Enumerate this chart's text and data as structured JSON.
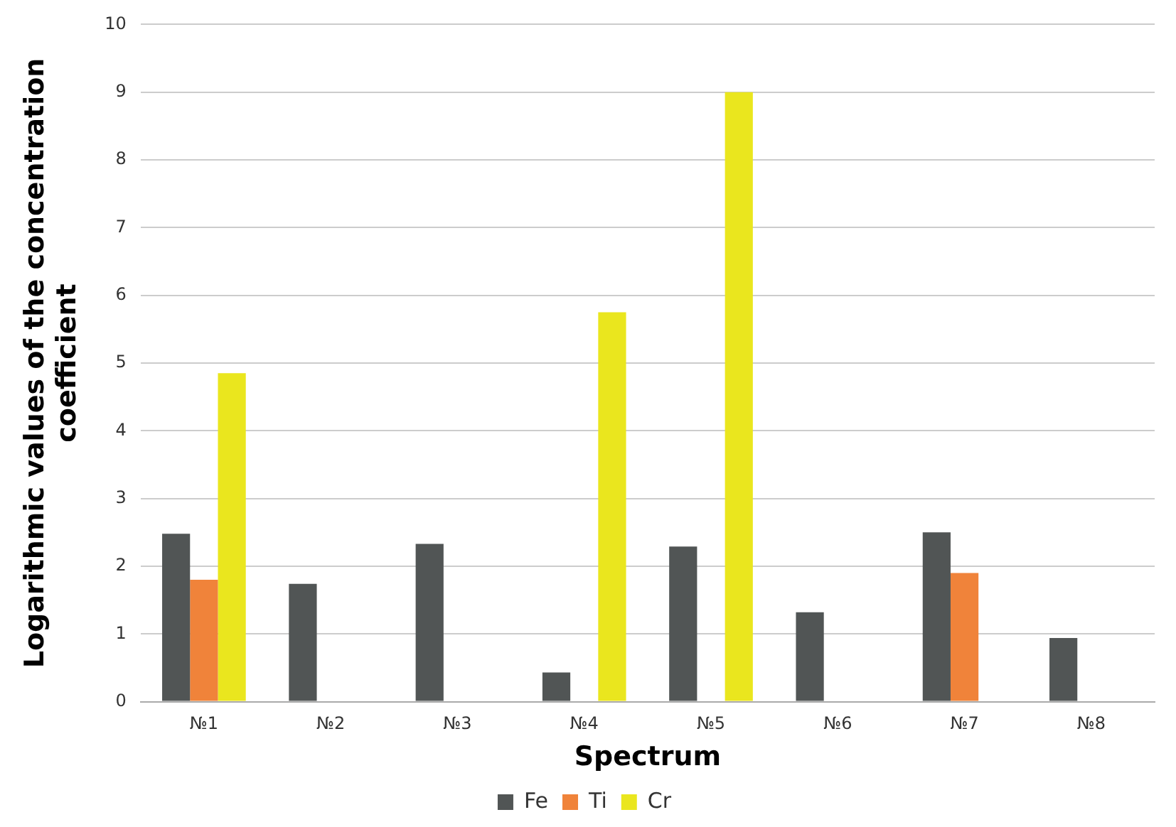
{
  "chart_data": {
    "type": "bar",
    "xlabel": "Spectrum",
    "ylabel": "Logarithmic values of the concentration coefficient",
    "categories": [
      "№1",
      "№2",
      "№3",
      "№4",
      "№5",
      "№6",
      "№7",
      "№8"
    ],
    "series": [
      {
        "name": "Fe",
        "color": "#515555",
        "values": [
          2.48,
          1.74,
          2.33,
          0.43,
          2.29,
          1.32,
          2.5,
          0.94
        ]
      },
      {
        "name": "Ti",
        "color": "#f0833a",
        "values": [
          1.8,
          null,
          null,
          null,
          null,
          null,
          1.9,
          null
        ]
      },
      {
        "name": "Cr",
        "color": "#eae61e",
        "values": [
          4.85,
          null,
          null,
          5.75,
          9.0,
          null,
          null,
          null
        ]
      }
    ],
    "ylim": [
      0,
      10
    ],
    "yticks": [
      0,
      1,
      2,
      3,
      4,
      5,
      6,
      7,
      8,
      9,
      10
    ],
    "grid": "y",
    "legend": "bottom"
  }
}
